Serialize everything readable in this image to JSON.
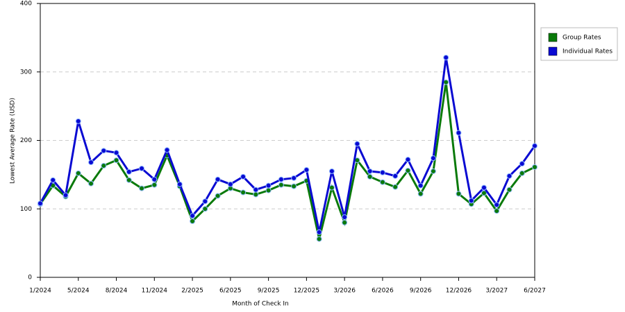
{
  "chart_data": {
    "type": "line",
    "xlabel": "Month of Check In",
    "ylabel": "Lowest Average Rate (USD)",
    "categories": [
      "1/2024",
      null,
      null,
      "5/2024",
      null,
      null,
      "8/2024",
      null,
      null,
      "11/2024",
      null,
      null,
      "2/2025",
      null,
      null,
      "6/2025",
      null,
      null,
      "9/2025",
      null,
      null,
      "12/2025",
      null,
      null,
      "3/2026",
      null,
      null,
      "6/2026",
      null,
      null,
      "9/2026",
      null,
      null,
      "12/2026",
      null,
      null,
      "3/2027",
      null,
      null,
      "6/2027"
    ],
    "series": [
      {
        "name": "Group Rates",
        "color": "#0a7a0a",
        "values": [
          107,
          134,
          118,
          152,
          137,
          163,
          171,
          142,
          130,
          135,
          178,
          133,
          82,
          100,
          119,
          130,
          124,
          121,
          127,
          135,
          133,
          141,
          56,
          131,
          80,
          171,
          147,
          139,
          132,
          156,
          122,
          155,
          285,
          122,
          107,
          123,
          97,
          128,
          152,
          161
        ]
      },
      {
        "name": "Individual Rates",
        "color": "#0a0ad2",
        "values": [
          108,
          142,
          120,
          228,
          168,
          185,
          182,
          154,
          159,
          143,
          186,
          136,
          90,
          111,
          143,
          136,
          147,
          128,
          134,
          143,
          145,
          157,
          66,
          155,
          88,
          195,
          155,
          153,
          148,
          172,
          134,
          174,
          321,
          211,
          112,
          131,
          106,
          148,
          166,
          192
        ]
      }
    ],
    "ylim": [
      0,
      400
    ],
    "yticks": [
      0,
      100,
      200,
      300,
      400
    ],
    "grid": true,
    "legend": "right"
  }
}
